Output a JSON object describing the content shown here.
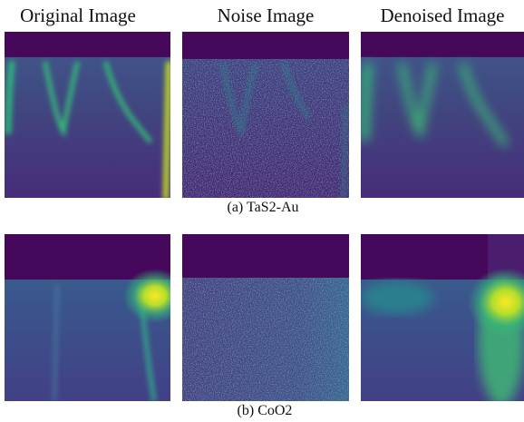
{
  "header": {
    "columns": [
      "Original Image",
      "Noise Image",
      "Denoised Image"
    ]
  },
  "rows": [
    {
      "caption": "(a) TaS2-Au"
    },
    {
      "caption": "(b) CoO2"
    }
  ]
}
